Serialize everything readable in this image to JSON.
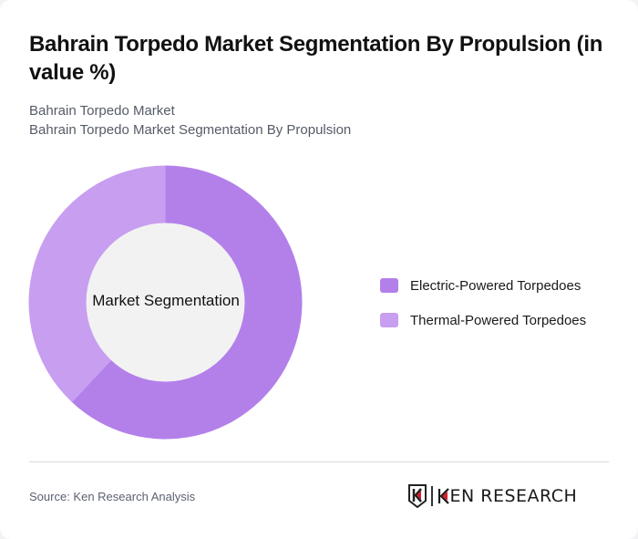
{
  "header": {
    "title": "Bahrain Torpedo Market Segmentation By Propulsion (in value %)",
    "subtitle_line1": "Bahrain Torpedo Market",
    "subtitle_line2": "Bahrain Torpedo Market Segmentation By Propulsion"
  },
  "chart": {
    "center_label": "Market Segmentation"
  },
  "legend": {
    "items": [
      {
        "label": "Electric-Powered Torpedoes",
        "color": "#b380ea"
      },
      {
        "label": "Thermal-Powered Torpedoes",
        "color": "#c79ef0"
      }
    ]
  },
  "footer": {
    "source": "Source: Ken Research Analysis",
    "logo_text": "KEN RESEARCH"
  },
  "chart_data": {
    "type": "pie",
    "subtype": "donut",
    "title": "Bahrain Torpedo Market Segmentation By Propulsion (in value %)",
    "subtitle": "Bahrain Torpedo Market / Bahrain Torpedo Market Segmentation By Propulsion",
    "center_label": "Market Segmentation",
    "categories": [
      "Electric-Powered Torpedoes",
      "Thermal-Powered Torpedoes"
    ],
    "values": [
      62,
      38
    ],
    "unit": "%",
    "colors": [
      "#b380ea",
      "#c79ef0"
    ],
    "legend_position": "right",
    "data_labels": false,
    "start_angle": "12 o'clock, clockwise"
  }
}
